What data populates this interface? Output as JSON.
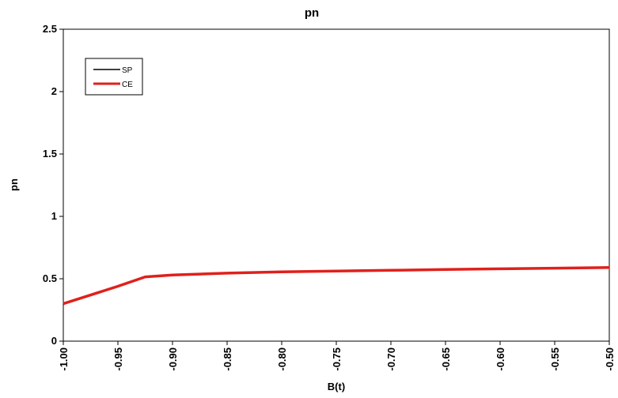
{
  "chart_data": {
    "type": "line",
    "title": "pn",
    "xlabel": "B(t)",
    "ylabel": "pn",
    "xlim": [
      -1.0,
      -0.5
    ],
    "ylim": [
      0,
      2.5
    ],
    "x_ticks": [
      "-1.00",
      "-0.95",
      "-0.90",
      "-0.85",
      "-0.80",
      "-0.75",
      "-0.70",
      "-0.65",
      "-0.60",
      "-0.55",
      "-0.50"
    ],
    "y_ticks": [
      "0",
      "0.5",
      "1",
      "1.5",
      "2",
      "2.5"
    ],
    "grid": false,
    "legend_position": "top-left",
    "legend": [
      "SP",
      "CE"
    ],
    "series": [
      {
        "name": "SP",
        "color": "#000000",
        "x": [
          -1.0,
          -0.95,
          -0.925,
          -0.9,
          -0.85,
          -0.8,
          -0.75,
          -0.7,
          -0.65,
          -0.6,
          -0.55,
          -0.5
        ],
        "y": [
          0.3,
          0.44,
          0.515,
          0.53,
          0.545,
          0.555,
          0.562,
          0.568,
          0.574,
          0.58,
          0.585,
          0.59
        ]
      },
      {
        "name": "CE",
        "color": "#e0201c",
        "x": [
          -1.0,
          -0.95,
          -0.925,
          -0.9,
          -0.85,
          -0.8,
          -0.75,
          -0.7,
          -0.65,
          -0.6,
          -0.55,
          -0.5
        ],
        "y": [
          0.3,
          0.44,
          0.515,
          0.53,
          0.545,
          0.555,
          0.562,
          0.568,
          0.574,
          0.58,
          0.585,
          0.59
        ]
      }
    ]
  }
}
